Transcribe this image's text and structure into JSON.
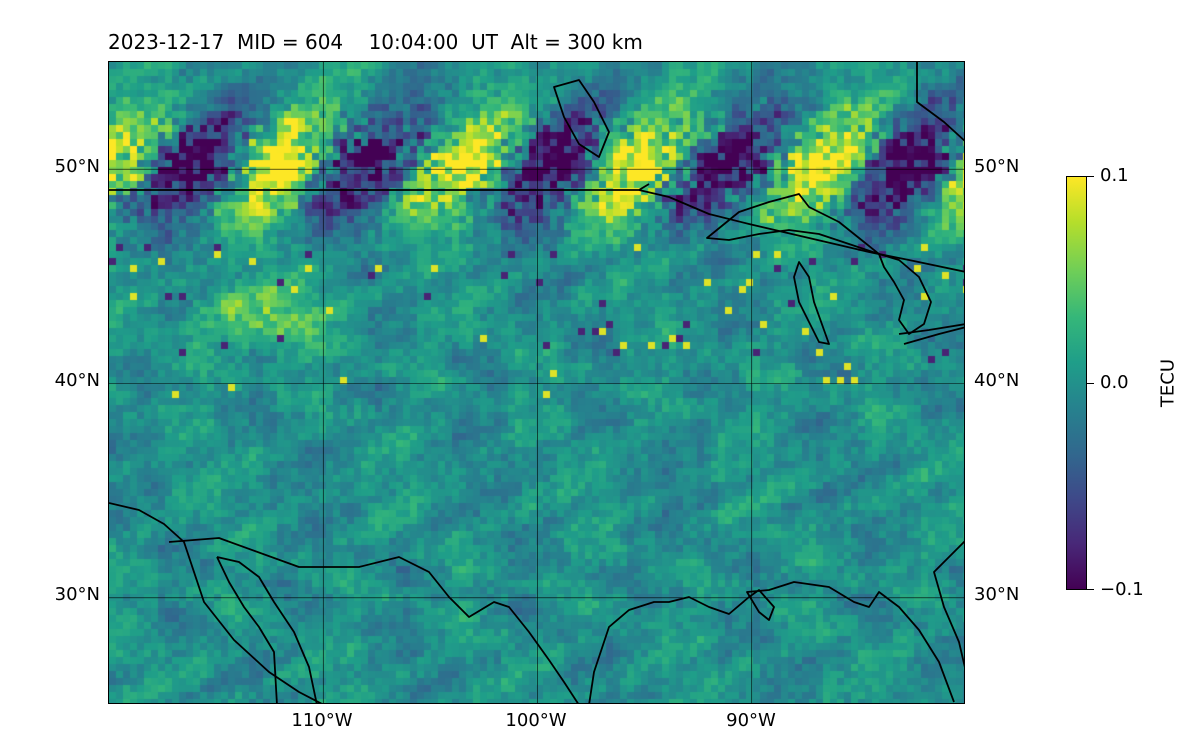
{
  "title": "2023-12-17  MID = 604    10:04:00  UT  Alt = 300 km",
  "map": {
    "extent": {
      "lon_min": -120,
      "lon_max": -80,
      "lat_min": 25,
      "lat_max": 55
    },
    "lat_ticks": [
      {
        "value": 50,
        "label": "50°N"
      },
      {
        "value": 40,
        "label": "40°N"
      },
      {
        "value": 30,
        "label": "30°N"
      }
    ],
    "lon_ticks": [
      {
        "value": -110,
        "label": "110°W"
      },
      {
        "value": -100,
        "label": "100°W"
      },
      {
        "value": -90,
        "label": "90°W"
      }
    ],
    "grid": true,
    "colormap": "viridis",
    "field": "TEC perturbation",
    "color_range": [
      -0.1,
      0.1
    ],
    "anomalies": [
      {
        "kind": "positive",
        "region": "southern Canada near 49-53°N, 106-92°W"
      },
      {
        "kind": "negative",
        "region": "southern Canada near 49-52°N, 103-96°W"
      },
      {
        "kind": "positive",
        "region": "northern Rockies near 43-45°N, 114-110°W"
      }
    ]
  },
  "colorbar": {
    "label": "TECU",
    "ticks": [
      {
        "value": 0.1,
        "label": "0.1"
      },
      {
        "value": 0.0,
        "label": "0.0"
      },
      {
        "value": -0.1,
        "label": "−0.1"
      }
    ]
  }
}
